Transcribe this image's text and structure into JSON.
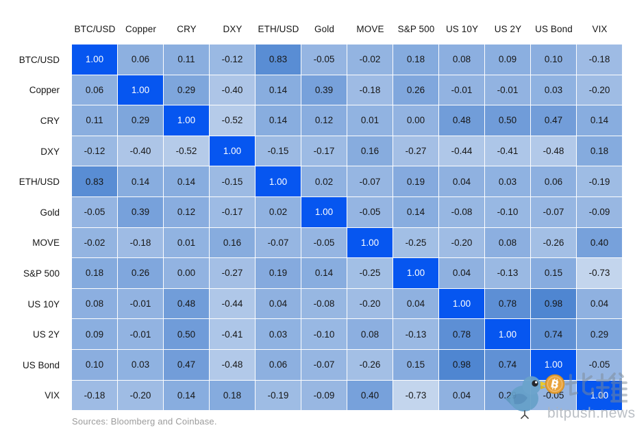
{
  "chart_data": {
    "type": "heatmap",
    "title": "",
    "x_categories": [
      "BTC/USD",
      "Copper",
      "CRY",
      "DXY",
      "ETH/USD",
      "Gold",
      "MOVE",
      "S&P 500",
      "US 10Y",
      "US 2Y",
      "US Bond",
      "VIX"
    ],
    "y_categories": [
      "BTC/USD",
      "Copper",
      "CRY",
      "DXY",
      "ETH/USD",
      "Gold",
      "MOVE",
      "S&P 500",
      "US 10Y",
      "US 2Y",
      "US Bond",
      "VIX"
    ],
    "values": [
      [
        1.0,
        0.06,
        0.11,
        -0.12,
        0.83,
        -0.05,
        -0.02,
        0.18,
        0.08,
        0.09,
        0.1,
        -0.18
      ],
      [
        0.06,
        1.0,
        0.29,
        -0.4,
        0.14,
        0.39,
        -0.18,
        0.26,
        -0.01,
        -0.01,
        0.03,
        -0.2
      ],
      [
        0.11,
        0.29,
        1.0,
        -0.52,
        0.14,
        0.12,
        0.01,
        0.0,
        0.48,
        0.5,
        0.47,
        0.14
      ],
      [
        -0.12,
        -0.4,
        -0.52,
        1.0,
        -0.15,
        -0.17,
        0.16,
        -0.27,
        -0.44,
        -0.41,
        -0.48,
        0.18
      ],
      [
        0.83,
        0.14,
        0.14,
        -0.15,
        1.0,
        0.02,
        -0.07,
        0.19,
        0.04,
        0.03,
        0.06,
        -0.19
      ],
      [
        -0.05,
        0.39,
        0.12,
        -0.17,
        0.02,
        1.0,
        -0.05,
        0.14,
        -0.08,
        -0.1,
        -0.07,
        -0.09
      ],
      [
        -0.02,
        -0.18,
        0.01,
        0.16,
        -0.07,
        -0.05,
        1.0,
        -0.25,
        -0.2,
        0.08,
        -0.26,
        0.4
      ],
      [
        0.18,
        0.26,
        0.0,
        -0.27,
        0.19,
        0.14,
        -0.25,
        1.0,
        0.04,
        -0.13,
        0.15,
        -0.73
      ],
      [
        0.08,
        -0.01,
        0.48,
        -0.44,
        0.04,
        -0.08,
        -0.2,
        0.04,
        1.0,
        0.78,
        0.98,
        0.04
      ],
      [
        0.09,
        -0.01,
        0.5,
        -0.41,
        0.03,
        -0.1,
        0.08,
        -0.13,
        0.78,
        1.0,
        0.74,
        0.29
      ],
      [
        0.1,
        0.03,
        0.47,
        -0.48,
        0.06,
        -0.07,
        -0.26,
        0.15,
        0.98,
        0.74,
        1.0,
        -0.05
      ],
      [
        -0.18,
        -0.2,
        0.14,
        0.18,
        -0.19,
        -0.09,
        0.4,
        -0.73,
        0.04,
        0.29,
        -0.05,
        1.0
      ]
    ],
    "value_decimals": 2,
    "legend": "none",
    "grid": "white 1px separators",
    "colorscale": {
      "domain": [
        -1,
        1
      ],
      "low": "#D5E1F1",
      "high": "#4E85D1",
      "diagonal": "#0656F0"
    }
  },
  "text_colors": {
    "cell": "#161616",
    "diagonal_cell": "#FFFFFF",
    "footer": "#9B9B9B"
  },
  "footer": {
    "sources": "Sources: Bloomberg and Coinbase."
  },
  "watermark": {
    "cn_text": "比推",
    "site": "bitpush.news",
    "icons": [
      "twitter-bird-icon",
      "bitcoin-icon"
    ]
  }
}
